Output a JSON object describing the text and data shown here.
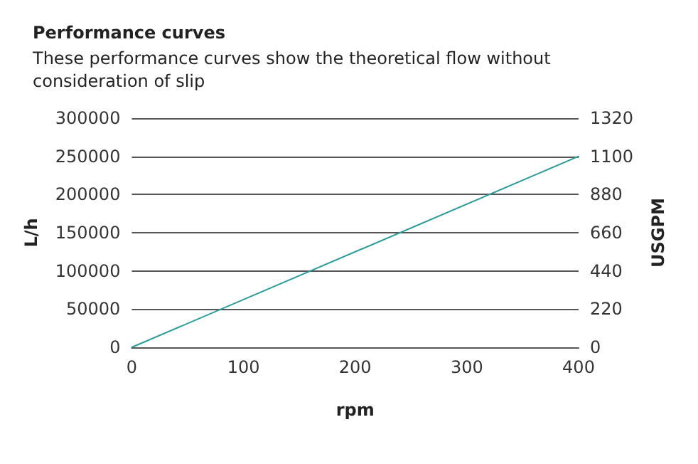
{
  "chart_data": {
    "type": "line",
    "title": "Performance curves",
    "subtitle": "These performance curves show the theoretical flow without consideration of slip",
    "xlabel": "rpm",
    "ylabel": "L/h",
    "y2label": "USGPM",
    "x": [
      0,
      400
    ],
    "series": [
      {
        "color": "#2a9d9a",
        "values": [
          0,
          250000
        ]
      }
    ],
    "xlim": [
      0,
      400
    ],
    "xticks": [
      0,
      100,
      200,
      300,
      400
    ],
    "ylim": [
      0,
      300000
    ],
    "yticks": [
      0,
      50000,
      100000,
      150000,
      200000,
      250000,
      300000
    ],
    "y2lim": [
      0,
      1320
    ],
    "y2ticks": [
      0,
      220,
      440,
      660,
      880,
      1100,
      1320
    ],
    "grid": "y",
    "marker": "none",
    "line_style": "solid"
  }
}
